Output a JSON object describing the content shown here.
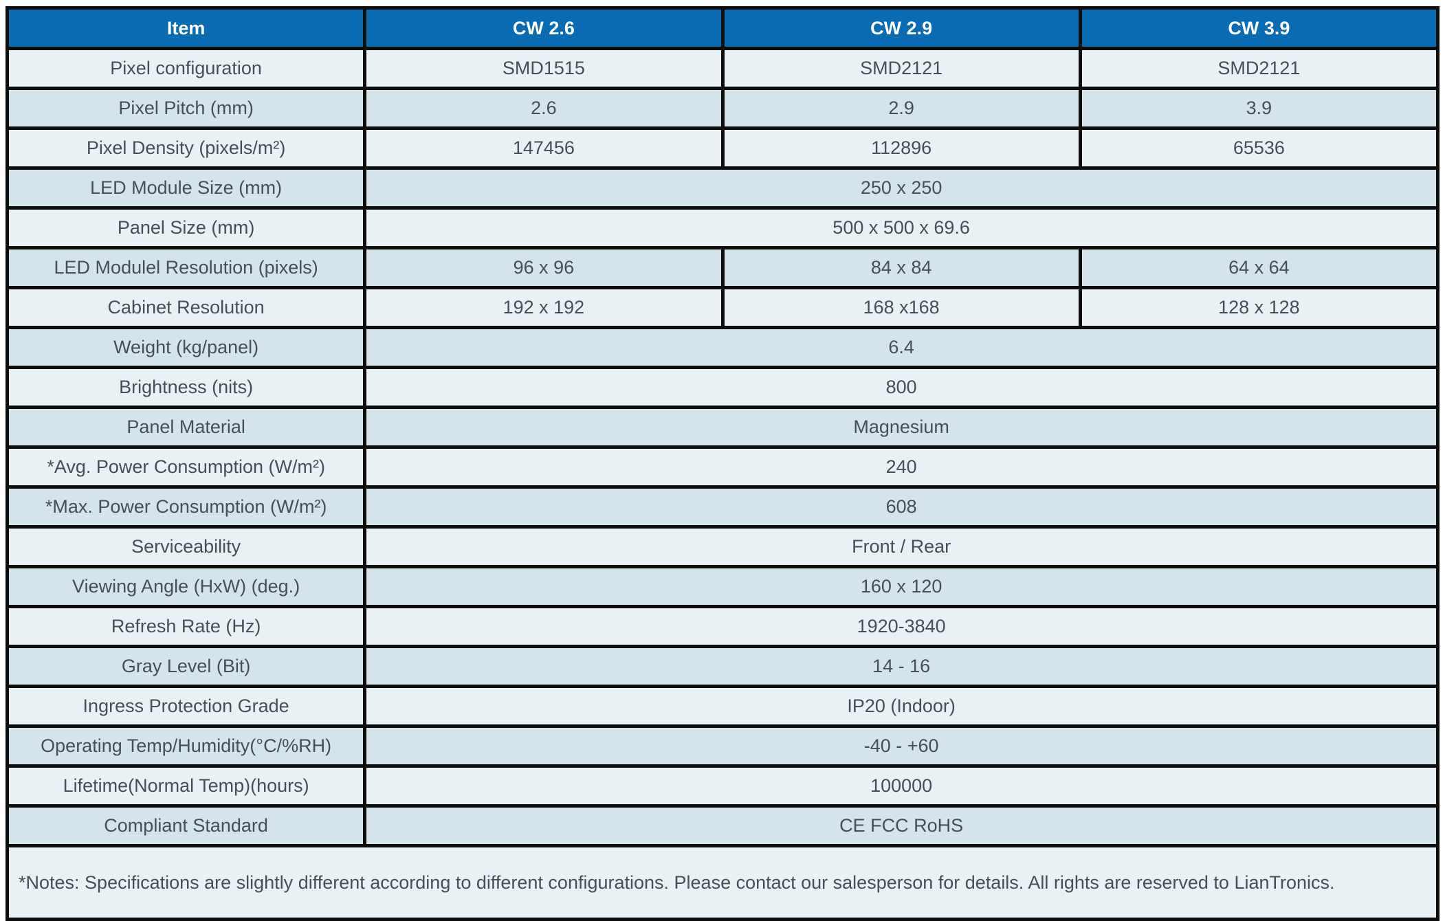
{
  "theme": {
    "header_bg": "#0a6ab2",
    "header_text": "#ffffff",
    "row_light": "#eaf1f4",
    "row_dark": "#d5e4ea",
    "notes_bg": "#eaf1f4",
    "border": "#0d0d0d",
    "text": "#454f57",
    "page_bg": "#ffffff"
  },
  "table": {
    "columns": [
      "Item",
      "CW 2.6",
      "CW 2.9",
      "CW 3.9"
    ],
    "rows": [
      {
        "label": "Pixel configuration",
        "cells": [
          "SMD1515",
          "SMD2121",
          "SMD2121"
        ]
      },
      {
        "label": "Pixel Pitch (mm)",
        "cells": [
          "2.6",
          "2.9",
          "3.9"
        ]
      },
      {
        "label": "Pixel Density (pixels/m²)",
        "cells": [
          "147456",
          "112896",
          "65536"
        ]
      },
      {
        "label": "LED Module Size (mm)",
        "cells": [
          "250 x 250"
        ]
      },
      {
        "label": "Panel Size (mm)",
        "cells": [
          "500 x 500 x 69.6"
        ]
      },
      {
        "label": "LED Modulel Resolution (pixels)",
        "cells": [
          "96 x 96",
          "84 x 84",
          "64 x 64"
        ]
      },
      {
        "label": "Cabinet Resolution",
        "cells": [
          "192 x 192",
          "168 x168",
          "128 x 128"
        ]
      },
      {
        "label": "Weight (kg/panel)",
        "cells": [
          "6.4"
        ]
      },
      {
        "label": "Brightness (nits)",
        "cells": [
          "800"
        ]
      },
      {
        "label": "Panel Material",
        "cells": [
          "Magnesium"
        ]
      },
      {
        "label": "*Avg. Power Consumption (W/m²)",
        "cells": [
          "240"
        ]
      },
      {
        "label": "*Max. Power Consumption (W/m²)",
        "cells": [
          "608"
        ]
      },
      {
        "label": "Serviceability",
        "cells": [
          "Front / Rear"
        ]
      },
      {
        "label": "Viewing Angle (HxW) (deg.)",
        "cells": [
          "160 x 120"
        ]
      },
      {
        "label": "Refresh Rate (Hz)",
        "cells": [
          "1920-3840"
        ]
      },
      {
        "label": "Gray Level (Bit)",
        "cells": [
          "14 - 16"
        ]
      },
      {
        "label": "Ingress Protection Grade",
        "cells": [
          "IP20 (Indoor)"
        ]
      },
      {
        "label": "Operating Temp/Humidity(°C/%RH)",
        "cells": [
          "-40 - +60"
        ]
      },
      {
        "label": "Lifetime(Normal Temp)(hours)",
        "cells": [
          "100000"
        ]
      },
      {
        "label": "Compliant Standard",
        "cells": [
          "CE FCC RoHS"
        ]
      }
    ],
    "notes": "*Notes: Specifications are slightly different according to different configurations. Please contact our salesperson for details. All rights are reserved to LianTronics."
  }
}
